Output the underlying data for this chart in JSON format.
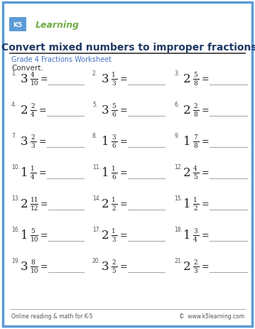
{
  "title": "Convert mixed numbers to improper fractions",
  "subtitle": "Grade 4 Fractions Worksheet",
  "convert_label": "Convert.",
  "bg_color": "#ffffff",
  "border_color": "#5b9bd5",
  "title_color": "#1f3864",
  "subtitle_color": "#4472c4",
  "text_color": "#333333",
  "footer_left": "Online reading & math for K-5",
  "footer_right": "©  www.k5learning.com",
  "problems": [
    {
      "num": "1.",
      "whole": "3",
      "numer": "4",
      "denom": "10"
    },
    {
      "num": "2.",
      "whole": "3",
      "numer": "1",
      "denom": "3"
    },
    {
      "num": "3.",
      "whole": "2",
      "numer": "5",
      "denom": "8"
    },
    {
      "num": "4.",
      "whole": "2",
      "numer": "2",
      "denom": "4"
    },
    {
      "num": "5.",
      "whole": "3",
      "numer": "5",
      "denom": "6"
    },
    {
      "num": "6.",
      "whole": "2",
      "numer": "2",
      "denom": "8"
    },
    {
      "num": "7.",
      "whole": "3",
      "numer": "2",
      "denom": "3"
    },
    {
      "num": "8.",
      "whole": "1",
      "numer": "3",
      "denom": "6"
    },
    {
      "num": "9.",
      "whole": "1",
      "numer": "7",
      "denom": "8"
    },
    {
      "num": "10.",
      "whole": "1",
      "numer": "1",
      "denom": "4"
    },
    {
      "num": "11.",
      "whole": "1",
      "numer": "1",
      "denom": "6"
    },
    {
      "num": "12.",
      "whole": "2",
      "numer": "4",
      "denom": "5"
    },
    {
      "num": "13.",
      "whole": "2",
      "numer": "11",
      "denom": "12"
    },
    {
      "num": "14.",
      "whole": "2",
      "numer": "1",
      "denom": "2"
    },
    {
      "num": "15.",
      "whole": "1",
      "numer": "1",
      "denom": "2"
    },
    {
      "num": "16.",
      "whole": "1",
      "numer": "5",
      "denom": "10"
    },
    {
      "num": "17.",
      "whole": "2",
      "numer": "1",
      "denom": "3"
    },
    {
      "num": "18.",
      "whole": "1",
      "numer": "3",
      "denom": "4"
    },
    {
      "num": "19.",
      "whole": "3",
      "numer": "8",
      "denom": "10"
    },
    {
      "num": "20.",
      "whole": "3",
      "numer": "2",
      "denom": "5"
    },
    {
      "num": "21.",
      "whole": "2",
      "numer": "2",
      "denom": "3"
    }
  ]
}
